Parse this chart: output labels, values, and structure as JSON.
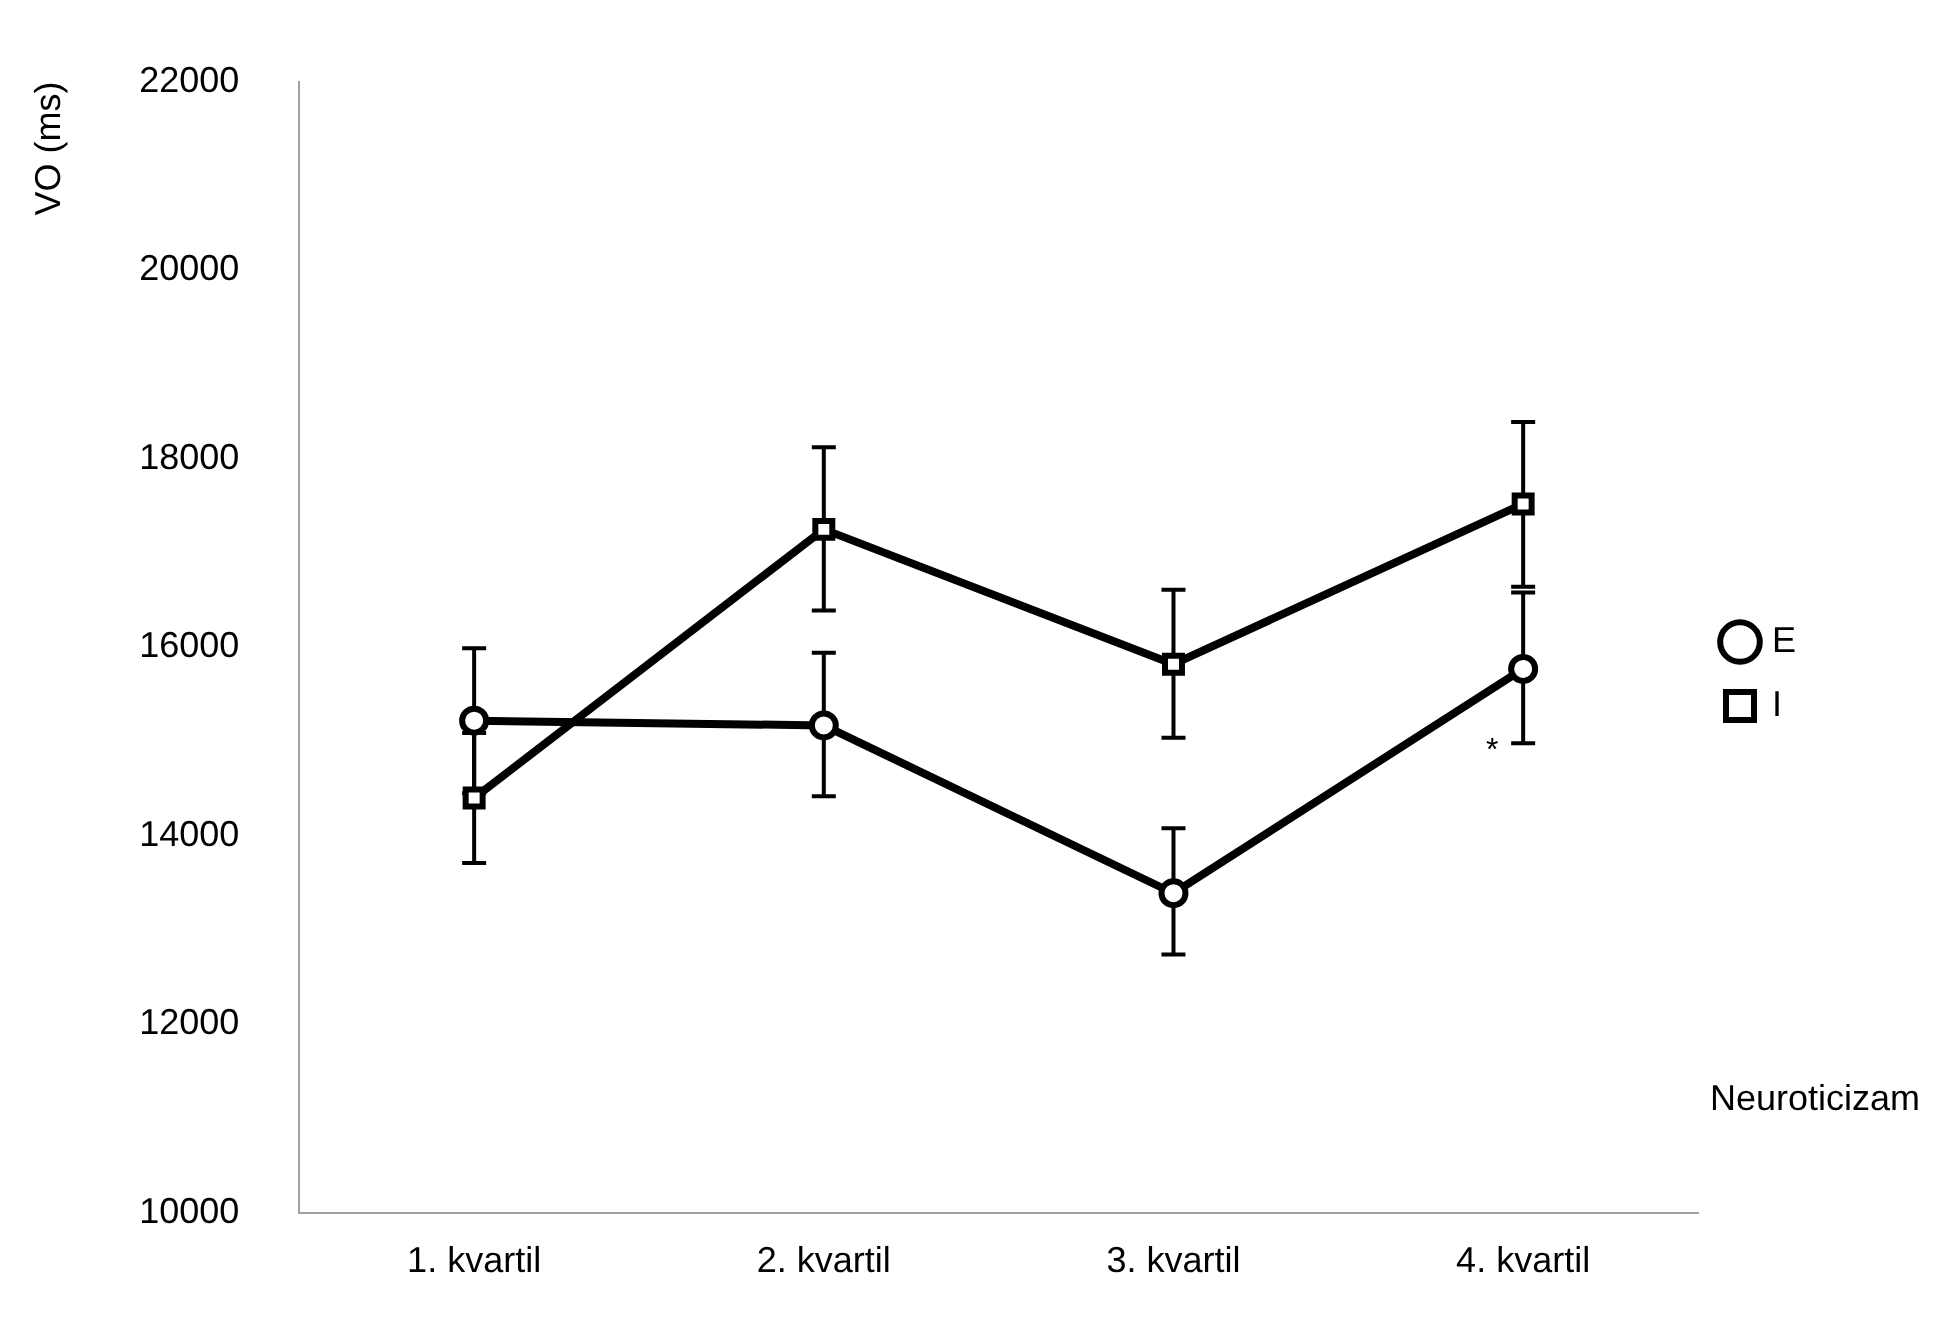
{
  "chart_data": {
    "type": "line",
    "xlabel": "Neuroticizam",
    "ylabel": "VO (ms)",
    "categories": [
      "1. kvartil",
      "2. kvartil",
      "3. kvartil",
      "4. kvartil"
    ],
    "ylim": [
      10000,
      22000
    ],
    "yticks": [
      10000,
      12000,
      14000,
      16000,
      18000,
      20000,
      22000
    ],
    "grid": false,
    "legend": "right",
    "series": [
      {
        "name": "E",
        "color": "#000000",
        "marker": "circle",
        "values": [
          15220,
          15170,
          13390,
          15770
        ],
        "errors": [
          770,
          [
            14420,
            15940
          ],
          [
            12740,
            14080
          ],
          [
            14980,
            16580
          ]
        ]
      },
      {
        "name": "I",
        "color": "#000000",
        "marker": "square",
        "values": [
          14400,
          17250,
          15820,
          17520
        ],
        "errors": [
          690,
          [
            16390,
            18120
          ],
          [
            15040,
            16610
          ],
          [
            16640,
            18390
          ]
        ]
      }
    ],
    "annotations": [
      "*"
    ]
  }
}
